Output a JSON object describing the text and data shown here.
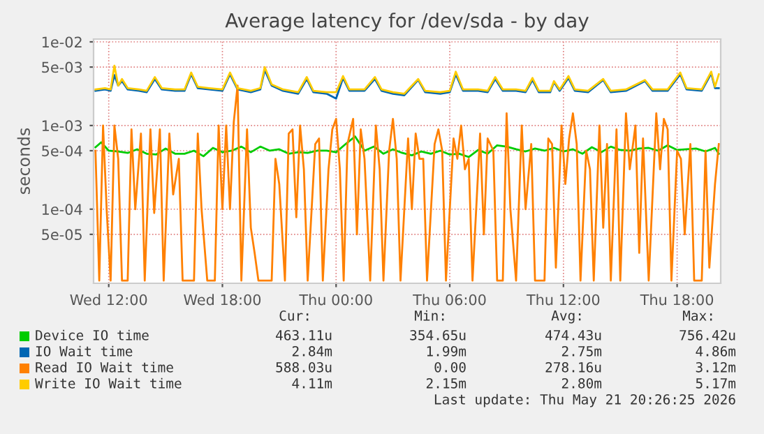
{
  "chart_data": {
    "type": "line",
    "title": "Average latency for /dev/sda - by day",
    "ylabel": "seconds",
    "log": "y",
    "xlim": [
      "2026-05-20T11:12",
      "2026-05-21T20:18"
    ],
    "xticks": [
      {
        "value": "2026-05-20T12:00",
        "label": "Wed 12:00"
      },
      {
        "value": "2026-05-20T18:00",
        "label": "Wed 18:00"
      },
      {
        "value": "2026-05-21T00:00",
        "label": "Thu 00:00"
      },
      {
        "value": "2026-05-21T06:00",
        "label": "Thu 06:00"
      },
      {
        "value": "2026-05-21T12:00",
        "label": "Thu 12:00"
      },
      {
        "value": "2026-05-21T18:00",
        "label": "Thu 18:00"
      }
    ],
    "ylim": [
      1.3e-05,
      0.0108
    ],
    "yticks": [
      {
        "value": 0.01,
        "label": "1e-02"
      },
      {
        "value": 0.005,
        "label": "5e-03"
      },
      {
        "value": 0.001,
        "label": "1e-03"
      },
      {
        "value": 0.0005,
        "label": "5e-04"
      },
      {
        "value": 0.0001,
        "label": "1e-04"
      },
      {
        "value": 5e-05,
        "label": "5e-05"
      }
    ],
    "grid": true,
    "legend": "bottom",
    "marker": "none",
    "line_style": "solid",
    "series": [
      {
        "name": "Device IO time",
        "color": "#00cc00",
        "x": [
          "2026-05-20T11:18",
          "2026-05-20T11:36",
          "2026-05-20T12:00",
          "2026-05-20T12:30",
          "2026-05-20T13:00",
          "2026-05-20T13:30",
          "2026-05-20T14:00",
          "2026-05-20T14:30",
          "2026-05-20T15:00",
          "2026-05-20T15:30",
          "2026-05-20T16:00",
          "2026-05-20T16:30",
          "2026-05-20T17:00",
          "2026-05-20T17:30",
          "2026-05-20T18:00",
          "2026-05-20T18:30",
          "2026-05-20T19:00",
          "2026-05-20T19:30",
          "2026-05-20T20:00",
          "2026-05-20T20:30",
          "2026-05-20T21:00",
          "2026-05-20T21:30",
          "2026-05-20T22:00",
          "2026-05-20T22:30",
          "2026-05-20T23:00",
          "2026-05-20T23:30",
          "2026-05-21T00:00",
          "2026-05-21T00:30",
          "2026-05-21T01:00",
          "2026-05-21T01:30",
          "2026-05-21T02:00",
          "2026-05-21T02:30",
          "2026-05-21T03:00",
          "2026-05-21T03:30",
          "2026-05-21T04:00",
          "2026-05-21T04:30",
          "2026-05-21T05:00",
          "2026-05-21T05:30",
          "2026-05-21T06:00",
          "2026-05-21T06:30",
          "2026-05-21T07:00",
          "2026-05-21T07:30",
          "2026-05-21T08:00",
          "2026-05-21T08:30",
          "2026-05-21T09:00",
          "2026-05-21T09:30",
          "2026-05-21T10:00",
          "2026-05-21T10:30",
          "2026-05-21T11:00",
          "2026-05-21T11:30",
          "2026-05-21T12:00",
          "2026-05-21T12:30",
          "2026-05-21T13:00",
          "2026-05-21T13:30",
          "2026-05-21T14:00",
          "2026-05-21T14:30",
          "2026-05-21T15:00",
          "2026-05-21T15:30",
          "2026-05-21T16:00",
          "2026-05-21T16:30",
          "2026-05-21T17:00",
          "2026-05-21T17:30",
          "2026-05-21T18:00",
          "2026-05-21T18:30",
          "2026-05-21T19:00",
          "2026-05-21T19:30",
          "2026-05-21T20:00",
          "2026-05-21T20:12"
        ],
        "values": [
          0.00055,
          0.00063,
          0.0005,
          0.00049,
          0.00047,
          0.00052,
          0.00046,
          0.00045,
          0.00053,
          0.00046,
          0.00046,
          0.0005,
          0.00043,
          0.00054,
          0.00048,
          0.0005,
          0.00056,
          0.00048,
          0.00056,
          0.0005,
          0.00052,
          0.00046,
          0.00048,
          0.00047,
          0.0005,
          0.0005,
          0.00048,
          0.0006,
          0.00074,
          0.0005,
          0.00056,
          0.00046,
          0.00052,
          0.00047,
          0.00044,
          0.00049,
          0.00046,
          0.0005,
          0.00045,
          0.00046,
          0.00042,
          0.00051,
          0.00046,
          0.00058,
          0.00056,
          0.00052,
          0.00049,
          0.00053,
          0.0005,
          0.00054,
          0.00049,
          0.00052,
          0.00046,
          0.00055,
          0.00048,
          0.00056,
          0.00051,
          0.0005,
          0.00053,
          0.00054,
          0.0005,
          0.00058,
          0.00051,
          0.00052,
          0.00053,
          0.00049,
          0.00054,
          0.00046
        ]
      },
      {
        "name": "IO Wait time",
        "color": "#0066b3",
        "x": [
          "2026-05-20T11:18",
          "2026-05-20T11:48",
          "2026-05-20T12:06",
          "2026-05-20T12:18",
          "2026-05-20T12:30",
          "2026-05-20T12:42",
          "2026-05-20T13:00",
          "2026-05-20T13:36",
          "2026-05-20T14:00",
          "2026-05-20T14:26",
          "2026-05-20T14:48",
          "2026-05-20T15:30",
          "2026-05-20T16:00",
          "2026-05-20T16:21",
          "2026-05-20T16:42",
          "2026-05-20T17:18",
          "2026-05-20T18:00",
          "2026-05-20T18:24",
          "2026-05-20T18:48",
          "2026-05-20T19:30",
          "2026-05-20T20:00",
          "2026-05-20T20:14",
          "2026-05-20T20:36",
          "2026-05-20T21:12",
          "2026-05-20T22:00",
          "2026-05-20T22:27",
          "2026-05-20T22:48",
          "2026-05-20T23:30",
          "2026-05-21T00:00",
          "2026-05-21T00:22",
          "2026-05-21T00:42",
          "2026-05-21T01:30",
          "2026-05-21T02:03",
          "2026-05-21T02:24",
          "2026-05-21T03:00",
          "2026-05-21T03:36",
          "2026-05-21T04:20",
          "2026-05-21T04:42",
          "2026-05-21T05:30",
          "2026-05-21T06:00",
          "2026-05-21T06:19",
          "2026-05-21T06:42",
          "2026-05-21T07:30",
          "2026-05-21T08:00",
          "2026-05-21T08:24",
          "2026-05-21T08:48",
          "2026-05-21T09:30",
          "2026-05-21T10:00",
          "2026-05-21T10:22",
          "2026-05-21T10:42",
          "2026-05-21T11:18",
          "2026-05-21T11:30",
          "2026-05-21T11:48",
          "2026-05-21T12:16",
          "2026-05-21T12:36",
          "2026-05-21T13:18",
          "2026-05-21T14:06",
          "2026-05-21T14:30",
          "2026-05-21T15:18",
          "2026-05-21T16:18",
          "2026-05-21T16:42",
          "2026-05-21T17:30",
          "2026-05-21T18:10",
          "2026-05-21T18:30",
          "2026-05-21T19:18",
          "2026-05-21T19:48",
          "2026-05-21T20:00",
          "2026-05-21T20:12"
        ],
        "values": [
          0.0026,
          0.0027,
          0.0026,
          0.004,
          0.003,
          0.0034,
          0.0027,
          0.0026,
          0.0025,
          0.0036,
          0.0027,
          0.0026,
          0.0026,
          0.0041,
          0.0028,
          0.0027,
          0.0026,
          0.0041,
          0.0027,
          0.0025,
          0.0027,
          0.0046,
          0.003,
          0.0026,
          0.0024,
          0.0036,
          0.0025,
          0.0024,
          0.0021,
          0.0037,
          0.0026,
          0.0026,
          0.0036,
          0.0026,
          0.0024,
          0.0023,
          0.0035,
          0.0025,
          0.0024,
          0.0025,
          0.0041,
          0.0026,
          0.0026,
          0.0025,
          0.0036,
          0.0026,
          0.0026,
          0.0025,
          0.0035,
          0.0025,
          0.0025,
          0.0033,
          0.0026,
          0.0037,
          0.0026,
          0.0025,
          0.0035,
          0.0025,
          0.0026,
          0.0034,
          0.0026,
          0.0026,
          0.0041,
          0.0027,
          0.0026,
          0.0042,
          0.0028,
          0.0028
        ]
      },
      {
        "name": "Read IO Wait time",
        "color": "#ff8000",
        "x": [
          "2026-05-20T11:18",
          "2026-05-20T11:30",
          "2026-05-20T11:42",
          "2026-05-20T11:54",
          "2026-05-20T12:06",
          "2026-05-20T12:18",
          "2026-05-20T12:30",
          "2026-05-20T12:42",
          "2026-05-20T13:00",
          "2026-05-20T13:12",
          "2026-05-20T13:24",
          "2026-05-20T13:42",
          "2026-05-20T13:54",
          "2026-05-20T14:12",
          "2026-05-20T14:24",
          "2026-05-20T14:42",
          "2026-05-20T14:54",
          "2026-05-20T15:12",
          "2026-05-20T15:24",
          "2026-05-20T15:42",
          "2026-05-20T15:54",
          "2026-05-20T16:30",
          "2026-05-20T16:42",
          "2026-05-20T16:54",
          "2026-05-20T17:12",
          "2026-05-20T17:36",
          "2026-05-20T17:48",
          "2026-05-20T18:00",
          "2026-05-20T18:12",
          "2026-05-20T18:24",
          "2026-05-20T18:36",
          "2026-05-20T18:48",
          "2026-05-20T19:00",
          "2026-05-20T19:18",
          "2026-05-20T19:30",
          "2026-05-20T19:42",
          "2026-05-20T19:54",
          "2026-05-20T20:36",
          "2026-05-20T20:48",
          "2026-05-20T21:00",
          "2026-05-20T21:18",
          "2026-05-20T21:30",
          "2026-05-20T21:42",
          "2026-05-20T21:54",
          "2026-05-20T22:06",
          "2026-05-20T22:18",
          "2026-05-20T22:30",
          "2026-05-20T22:54",
          "2026-05-20T23:06",
          "2026-05-20T23:18",
          "2026-05-20T23:36",
          "2026-05-20T23:48",
          "2026-05-21T00:00",
          "2026-05-21T00:12",
          "2026-05-21T00:24",
          "2026-05-21T00:36",
          "2026-05-21T00:54",
          "2026-05-21T01:06",
          "2026-05-21T01:18",
          "2026-05-21T01:30",
          "2026-05-21T01:48",
          "2026-05-21T02:06",
          "2026-05-21T02:18",
          "2026-05-21T02:30",
          "2026-05-21T02:48",
          "2026-05-21T03:00",
          "2026-05-21T03:12",
          "2026-05-21T03:24",
          "2026-05-21T03:48",
          "2026-05-21T04:00",
          "2026-05-21T04:12",
          "2026-05-21T04:24",
          "2026-05-21T04:36",
          "2026-05-21T04:48",
          "2026-05-21T05:12",
          "2026-05-21T05:24",
          "2026-05-21T05:36",
          "2026-05-21T05:48",
          "2026-05-21T06:12",
          "2026-05-21T06:24",
          "2026-05-21T06:36",
          "2026-05-21T06:48",
          "2026-05-21T07:00",
          "2026-05-21T07:12",
          "2026-05-21T07:36",
          "2026-05-21T07:48",
          "2026-05-21T08:00",
          "2026-05-21T08:18",
          "2026-05-21T08:30",
          "2026-05-21T08:48",
          "2026-05-21T09:00",
          "2026-05-21T09:12",
          "2026-05-21T09:30",
          "2026-05-21T09:48",
          "2026-05-21T10:00",
          "2026-05-21T10:18",
          "2026-05-21T10:30",
          "2026-05-21T11:00",
          "2026-05-21T11:12",
          "2026-05-21T11:24",
          "2026-05-21T11:36",
          "2026-05-21T11:54",
          "2026-05-21T12:06",
          "2026-05-21T12:18",
          "2026-05-21T12:30",
          "2026-05-21T12:42",
          "2026-05-21T12:54",
          "2026-05-21T13:12",
          "2026-05-21T13:24",
          "2026-05-21T13:36",
          "2026-05-21T13:54",
          "2026-05-21T14:06",
          "2026-05-21T14:18",
          "2026-05-21T14:30",
          "2026-05-21T14:48",
          "2026-05-21T15:00",
          "2026-05-21T15:18",
          "2026-05-21T15:30",
          "2026-05-21T15:48",
          "2026-05-21T16:00",
          "2026-05-21T16:12",
          "2026-05-21T16:30",
          "2026-05-21T16:54",
          "2026-05-21T17:06",
          "2026-05-21T17:18",
          "2026-05-21T17:30",
          "2026-05-21T17:42",
          "2026-05-21T18:00",
          "2026-05-21T18:12",
          "2026-05-21T18:24",
          "2026-05-21T18:42",
          "2026-05-21T18:54",
          "2026-05-21T19:18",
          "2026-05-21T19:30",
          "2026-05-21T19:42",
          "2026-05-21T20:00",
          "2026-05-21T20:12"
        ],
        "values": [
          0.0005,
          1.4e-05,
          0.001,
          9e-05,
          1.4e-05,
          0.001,
          0.0004,
          1.4e-05,
          1.4e-05,
          0.0009,
          0.0001,
          0.0008,
          1.4e-05,
          0.0009,
          9e-05,
          0.0009,
          1.4e-05,
          0.0008,
          0.00015,
          0.0004,
          1.4e-05,
          1.4e-05,
          0.0008,
          0.0001,
          1.4e-05,
          1.4e-05,
          0.001,
          0.0001,
          0.001,
          0.0001,
          0.0011,
          0.003,
          1.4e-05,
          0.0009,
          6e-05,
          3e-05,
          1.4e-05,
          1.4e-05,
          0.0004,
          0.0002,
          1.4e-05,
          0.0008,
          0.0009,
          8e-05,
          0.001,
          0.0003,
          1.4e-05,
          0.0006,
          0.0007,
          1.4e-05,
          0.0003,
          0.0009,
          0.0012,
          0.0003,
          1.4e-05,
          0.0006,
          0.0012,
          5e-05,
          0.0009,
          0.0004,
          1.4e-05,
          0.001,
          0.0003,
          1.4e-05,
          0.0005,
          0.0012,
          0.0004,
          1.4e-05,
          0.0007,
          0.0001,
          0.0008,
          0.0004,
          0.0004,
          1.4e-05,
          0.0006,
          0.0009,
          0.0005,
          1.4e-05,
          0.0007,
          0.0004,
          0.001,
          0.0003,
          0.0004,
          1.4e-05,
          0.0008,
          5e-05,
          0.0007,
          0.0005,
          1.4e-05,
          1.4e-05,
          0.0014,
          0.0001,
          1.4e-05,
          0.001,
          0.0001,
          0.0006,
          1.4e-05,
          1.4e-05,
          0.0007,
          0.0006,
          2e-05,
          0.001,
          0.0002,
          0.0007,
          0.0014,
          0.0006,
          1.4e-05,
          0.0005,
          0.0003,
          1.4e-05,
          0.001,
          6e-05,
          0.0006,
          1.4e-05,
          0.0009,
          1.4e-05,
          0.0014,
          0.0003,
          0.001,
          3e-05,
          0.0007,
          1.4e-05,
          0.0014,
          0.0003,
          0.0012,
          0.0009,
          1.4e-05,
          0.0005,
          0.0004,
          5e-05,
          0.0006,
          1.4e-05,
          1.4e-05,
          0.0005,
          2e-05,
          0.0002,
          0.0006
        ]
      },
      {
        "name": "Write IO Wait time",
        "color": "#ffcc00",
        "x": [
          "2026-05-20T11:18",
          "2026-05-20T11:48",
          "2026-05-20T12:06",
          "2026-05-20T12:18",
          "2026-05-20T12:30",
          "2026-05-20T12:42",
          "2026-05-20T13:00",
          "2026-05-20T13:36",
          "2026-05-20T14:00",
          "2026-05-20T14:26",
          "2026-05-20T14:48",
          "2026-05-20T15:30",
          "2026-05-20T16:00",
          "2026-05-20T16:21",
          "2026-05-20T16:42",
          "2026-05-20T17:18",
          "2026-05-20T18:00",
          "2026-05-20T18:24",
          "2026-05-20T18:48",
          "2026-05-20T19:30",
          "2026-05-20T20:00",
          "2026-05-20T20:14",
          "2026-05-20T20:36",
          "2026-05-20T21:12",
          "2026-05-20T22:00",
          "2026-05-20T22:27",
          "2026-05-20T22:48",
          "2026-05-20T23:30",
          "2026-05-21T00:00",
          "2026-05-21T00:22",
          "2026-05-21T00:42",
          "2026-05-21T01:30",
          "2026-05-21T02:03",
          "2026-05-21T02:24",
          "2026-05-21T03:00",
          "2026-05-21T03:36",
          "2026-05-21T04:20",
          "2026-05-21T04:42",
          "2026-05-21T05:30",
          "2026-05-21T06:00",
          "2026-05-21T06:19",
          "2026-05-21T06:42",
          "2026-05-21T07:30",
          "2026-05-21T08:00",
          "2026-05-21T08:24",
          "2026-05-21T08:48",
          "2026-05-21T09:30",
          "2026-05-21T10:00",
          "2026-05-21T10:22",
          "2026-05-21T10:42",
          "2026-05-21T11:18",
          "2026-05-21T11:30",
          "2026-05-21T11:48",
          "2026-05-21T12:16",
          "2026-05-21T12:36",
          "2026-05-21T13:18",
          "2026-05-21T14:06",
          "2026-05-21T14:30",
          "2026-05-21T15:18",
          "2026-05-21T16:18",
          "2026-05-21T16:42",
          "2026-05-21T17:30",
          "2026-05-21T18:10",
          "2026-05-21T18:30",
          "2026-05-21T19:18",
          "2026-05-21T19:48",
          "2026-05-21T20:00",
          "2026-05-21T20:12"
        ],
        "values": [
          0.0027,
          0.0028,
          0.0027,
          0.0052,
          0.003,
          0.0036,
          0.0028,
          0.0027,
          0.0026,
          0.0038,
          0.0028,
          0.0027,
          0.0027,
          0.0043,
          0.0029,
          0.0028,
          0.0027,
          0.0043,
          0.0028,
          0.0026,
          0.0028,
          0.005,
          0.0031,
          0.0027,
          0.0025,
          0.0038,
          0.0026,
          0.0025,
          0.0025,
          0.0039,
          0.0027,
          0.0027,
          0.0038,
          0.0027,
          0.0025,
          0.0024,
          0.0036,
          0.0026,
          0.0025,
          0.0026,
          0.0044,
          0.0027,
          0.0027,
          0.0026,
          0.0038,
          0.0027,
          0.0027,
          0.0026,
          0.0037,
          0.0026,
          0.0026,
          0.0034,
          0.0027,
          0.0039,
          0.0027,
          0.0026,
          0.0036,
          0.0026,
          0.0027,
          0.0035,
          0.0027,
          0.0027,
          0.0043,
          0.0028,
          0.0027,
          0.0044,
          0.0029,
          0.0041
        ]
      }
    ],
    "annotations": [
      "Cur:",
      "Min:",
      "Avg:",
      "Max:",
      "463.11u",
      "354.65u",
      "474.43u",
      "756.42u",
      "2.84m",
      "1.99m",
      "2.75m",
      "4.86m",
      "588.03u",
      "0.00",
      "278.16u",
      "3.12m",
      "4.11m",
      "2.15m",
      "2.80m",
      "5.17m",
      "Last update: Thu May 21 20:26:25 2026"
    ]
  }
}
